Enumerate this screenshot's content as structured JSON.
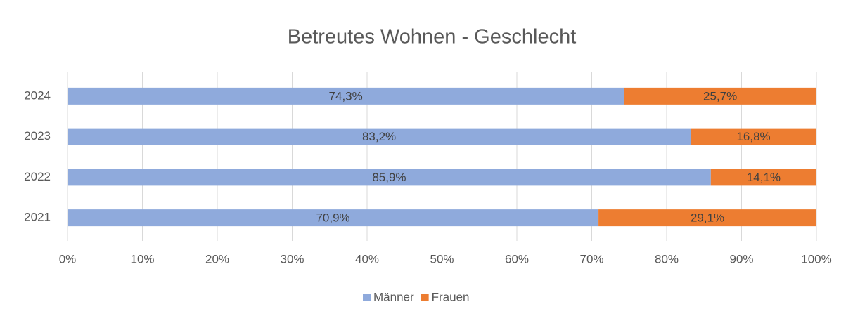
{
  "chart_data": {
    "type": "stacked_barh",
    "title": "Betreutes Wohnen - Geschlecht",
    "categories": [
      "2021",
      "2022",
      "2023",
      "2024"
    ],
    "series": [
      {
        "name": "Männer",
        "color": "#8faadc",
        "values": [
          70.9,
          85.9,
          83.2,
          74.3
        ],
        "value_labels": [
          "70,9%",
          "85,9%",
          "83,2%",
          "74,3%"
        ]
      },
      {
        "name": "Frauen",
        "color": "#ed7d31",
        "values": [
          29.1,
          14.1,
          16.8,
          25.7
        ],
        "value_labels": [
          "29,1%",
          "14,1%",
          "16,8%",
          "25,7%"
        ]
      }
    ],
    "xlim": [
      0,
      100
    ],
    "xticks": [
      {
        "value": 0,
        "label": "0%"
      },
      {
        "value": 10,
        "label": "10%"
      },
      {
        "value": 20,
        "label": "20%"
      },
      {
        "value": 30,
        "label": "30%"
      },
      {
        "value": 40,
        "label": "40%"
      },
      {
        "value": 50,
        "label": "50%"
      },
      {
        "value": 60,
        "label": "60%"
      },
      {
        "value": 70,
        "label": "70%"
      },
      {
        "value": 80,
        "label": "80%"
      },
      {
        "value": 90,
        "label": "90%"
      },
      {
        "value": 100,
        "label": "100%"
      }
    ],
    "grid": true,
    "legend": "bottom"
  }
}
